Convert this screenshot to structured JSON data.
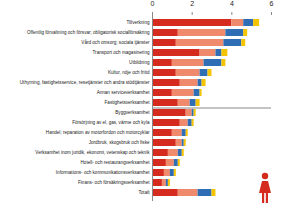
{
  "chart_data": {
    "type": "bar",
    "orientation": "horizontal",
    "stacked": true,
    "categories": [
      "Tillverkning",
      "Offentlig förvaltning och försvar; obligatorisk socialförsäkring",
      "Vård och omsorg; sociala tjänster",
      "Transport och magasinering",
      "Utbildning",
      "Kultur, nöje och fritid",
      "Uthyrning, fastighetsservice, resetjänster och andra stödtjänster",
      "Annan serviceverksamhet",
      "Fastighetsverksamhet",
      "Byggverksamhet",
      "Försörjning av el, gas, värme och kyla",
      "Handel; reparation av motorfordon och motorcyklar",
      "Jordbruk, skogsbruk och fiske",
      "Verksamhet inom juridik, ekonomi, vetenskap och teknik",
      "Hotell- och restaurangverksamhet",
      "Informations- och kommunikationsverksamhet",
      "Finans- och försäkringsverksamhet",
      "Totalt"
    ],
    "series": [
      {
        "color": "#d52b1e",
        "values": [
          4.0,
          1.3,
          1.2,
          2.4,
          1.0,
          1.2,
          1.4,
          1.0,
          1.3,
          1.7,
          1.4,
          1.0,
          1.2,
          0.8,
          0.7,
          0.6,
          0.5,
          1.3
        ]
      },
      {
        "color": "#f08a6c",
        "values": [
          0.6,
          2.4,
          2.4,
          0.8,
          1.6,
          1.2,
          0.9,
          1.1,
          0.6,
          0.3,
          0.4,
          0.5,
          0.3,
          0.5,
          0.4,
          0.3,
          0.2,
          1.0
        ]
      },
      {
        "color": "#2f6db5",
        "values": [
          0.5,
          0.9,
          0.9,
          0.3,
          0.9,
          0.4,
          0.2,
          0.3,
          0.3,
          0.1,
          0.2,
          0.2,
          0.1,
          0.2,
          0.2,
          0.2,
          0.1,
          0.7
        ]
      },
      {
        "color": "#f5c400",
        "values": [
          0.3,
          0.2,
          0.2,
          0.3,
          0.2,
          0.2,
          0.2,
          0.1,
          0.2,
          0.1,
          0.1,
          0.1,
          0.1,
          0.1,
          0.1,
          0.1,
          0.1,
          0.2
        ]
      }
    ],
    "xlim": [
      0,
      6
    ],
    "xticks": [
      0,
      2,
      4,
      6
    ],
    "grid": false
  }
}
